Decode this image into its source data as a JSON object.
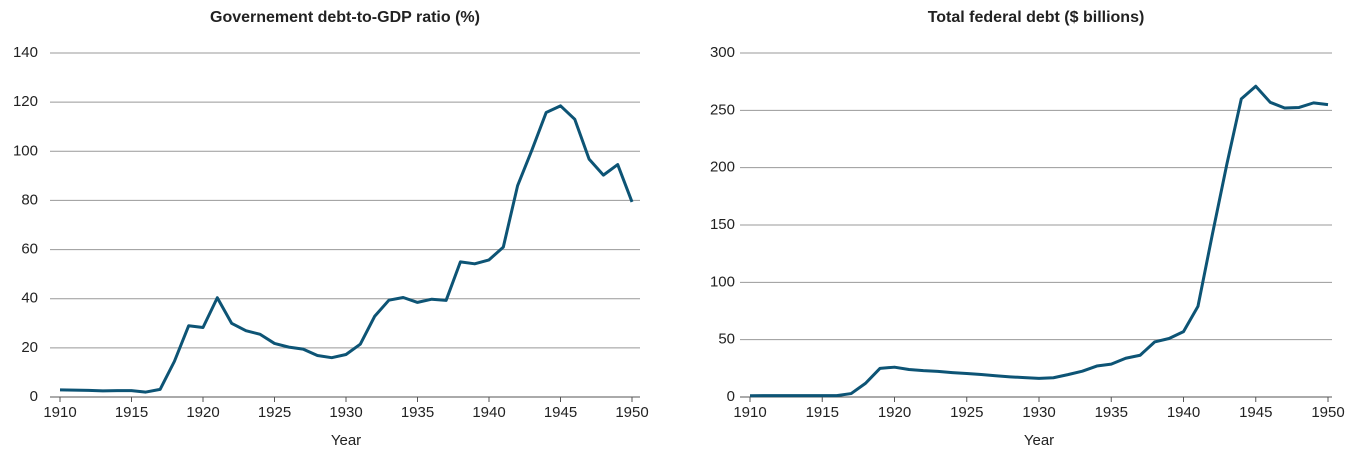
{
  "chart_data": [
    {
      "type": "line",
      "title": "Governement debt-to-GDP ratio (%)",
      "x_label": "Year",
      "x": [
        1910,
        1911,
        1912,
        1913,
        1914,
        1915,
        1916,
        1917,
        1918,
        1919,
        1920,
        1921,
        1922,
        1923,
        1924,
        1925,
        1926,
        1927,
        1928,
        1929,
        1930,
        1931,
        1932,
        1933,
        1934,
        1935,
        1936,
        1937,
        1938,
        1939,
        1940,
        1941,
        1942,
        1943,
        1944,
        1945,
        1946,
        1947,
        1948,
        1949,
        1950
      ],
      "series": [
        {
          "color": "#0d5475",
          "values": [
            2.9,
            2.8,
            2.7,
            2.5,
            2.6,
            2.6,
            2.0,
            3.1,
            14.5,
            29,
            28.3,
            40.4,
            30,
            27,
            25.5,
            21.8,
            20.3,
            19.5,
            16.9,
            16,
            17.3,
            21.5,
            32.8,
            39.4,
            40.5,
            38.5,
            39.8,
            39.3,
            55,
            54.2,
            55.8,
            61,
            86,
            100.5,
            115.8,
            118.5,
            113,
            96.8,
            90.3,
            94.6,
            79.4
          ]
        }
      ],
      "xlim": [
        1910,
        1950
      ],
      "xticks": [
        1910,
        1915,
        1920,
        1925,
        1930,
        1935,
        1940,
        1945,
        1950
      ],
      "ylim": [
        0,
        140
      ],
      "yticks": [
        0,
        20,
        40,
        60,
        80,
        100,
        120,
        140
      ],
      "grid": true
    },
    {
      "type": "line",
      "title": "Total federal debt ($ billions)",
      "x_label": "Year",
      "x": [
        1910,
        1911,
        1912,
        1913,
        1914,
        1915,
        1916,
        1917,
        1918,
        1919,
        1920,
        1921,
        1922,
        1923,
        1924,
        1925,
        1926,
        1927,
        1928,
        1929,
        1930,
        1931,
        1932,
        1933,
        1934,
        1935,
        1936,
        1937,
        1938,
        1939,
        1940,
        1941,
        1942,
        1943,
        1944,
        1945,
        1946,
        1947,
        1948,
        1949,
        1950
      ],
      "series": [
        {
          "color": "#0d5475",
          "values": [
            1.1,
            1.2,
            1.2,
            1.2,
            1.2,
            1.2,
            1.2,
            3,
            12,
            25,
            26,
            24,
            23,
            22.3,
            21.3,
            20.5,
            19.6,
            18.5,
            17.6,
            16.9,
            16.2,
            16.8,
            19.5,
            22.5,
            27,
            28.7,
            33.8,
            36.4,
            48,
            51,
            57,
            79,
            142,
            203,
            260,
            271,
            257,
            252,
            252.5,
            256.5,
            255
          ]
        }
      ],
      "xlim": [
        1910,
        1950
      ],
      "xticks": [
        1910,
        1915,
        1920,
        1925,
        1930,
        1935,
        1940,
        1945,
        1950
      ],
      "ylim": [
        0,
        300
      ],
      "yticks": [
        0,
        50,
        100,
        150,
        200,
        250,
        300
      ],
      "grid": true
    }
  ]
}
